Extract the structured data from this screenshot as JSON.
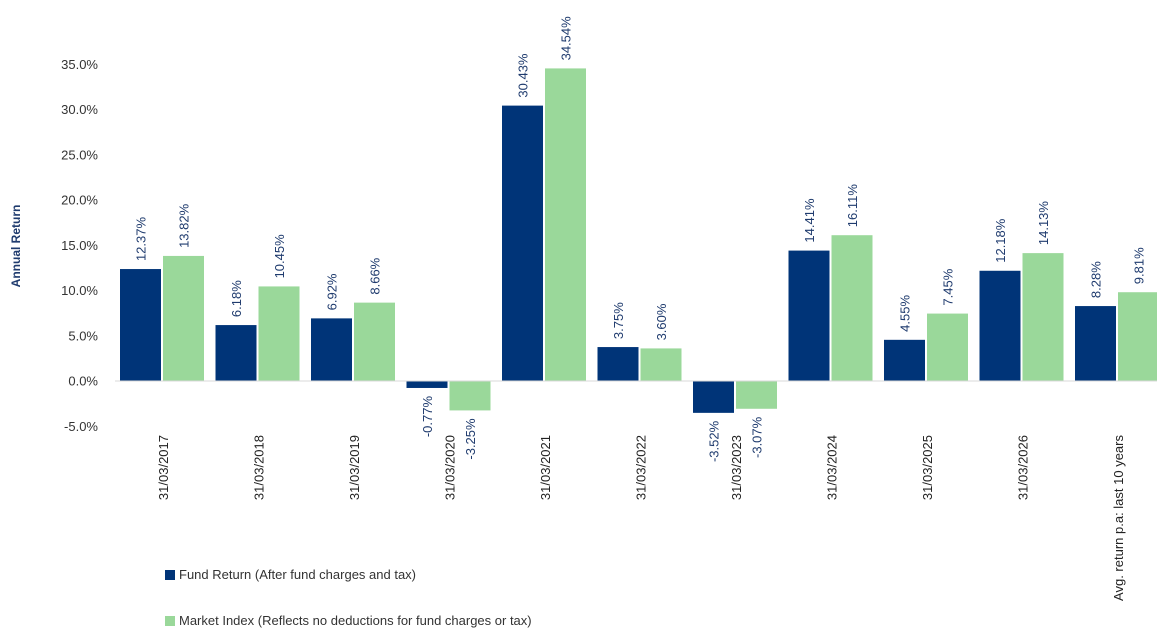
{
  "chart_data": {
    "type": "bar",
    "title": "",
    "xlabel": "",
    "ylabel": "Annual Return",
    "ylim": [
      -5,
      35
    ],
    "y_ticks": [
      "-5.0%",
      "0.0%",
      "5.0%",
      "10.0%",
      "15.0%",
      "20.0%",
      "25.0%",
      "30.0%",
      "35.0%"
    ],
    "y_tick_values": [
      -5,
      0,
      5,
      10,
      15,
      20,
      25,
      30,
      35
    ],
    "grid": false,
    "legend_position": "bottom-left",
    "categories": [
      "31/03/2017",
      "31/03/2018",
      "31/03/2019",
      "31/03/2020",
      "31/03/2021",
      "31/03/2022",
      "31/03/2023",
      "31/03/2024",
      "31/03/2025",
      "31/03/2026",
      "Avg. return p.a: last 10 years"
    ],
    "series": [
      {
        "name": "Fund Return (After fund charges and tax)",
        "color": "#003478",
        "values": [
          12.37,
          6.18,
          6.92,
          -0.77,
          30.43,
          3.75,
          -3.52,
          14.41,
          4.55,
          12.18,
          8.28
        ],
        "labels": [
          "12.37%",
          "6.18%",
          "6.92%",
          "-0.77%",
          "30.43%",
          "3.75%",
          "-3.52%",
          "14.41%",
          "4.55%",
          "12.18%",
          "8.28%"
        ]
      },
      {
        "name": "Market Index (Reflects no deductions for fund charges or tax)",
        "color": "#9ad89a",
        "values": [
          13.82,
          10.45,
          8.66,
          -3.25,
          34.54,
          3.6,
          -3.07,
          16.11,
          7.45,
          14.13,
          9.81
        ],
        "labels": [
          "13.82%",
          "10.45%",
          "8.66%",
          "-3.25%",
          "34.54%",
          "3.60%",
          "-3.07%",
          "16.11%",
          "7.45%",
          "14.13%",
          "9.81%"
        ]
      }
    ]
  }
}
